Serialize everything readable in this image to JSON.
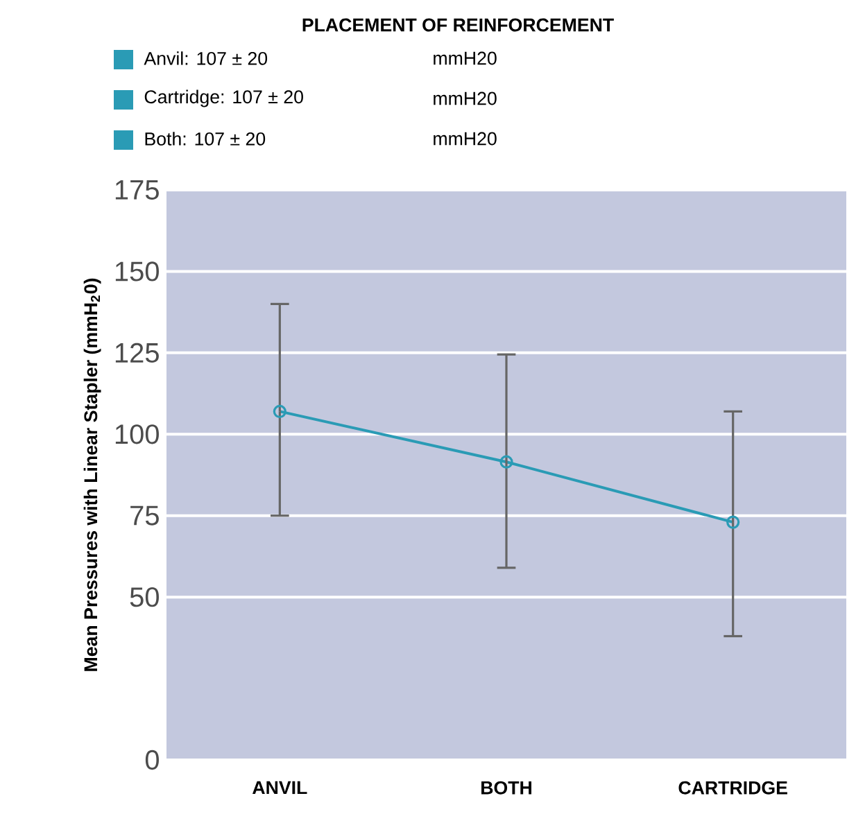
{
  "chart_data": {
    "type": "line",
    "title": "PLACEMENT OF REINFORCEMENT",
    "ylabel": "Mean Pressures with Linear Stapler (mmH$_{2}$0)",
    "categories": [
      "ANVIL",
      "BOTH",
      "CARTRIDGE"
    ],
    "series": [
      {
        "color": "#2a9bb5",
        "values": [
          107,
          91.5,
          73
        ],
        "errors": [
          [
            75,
            140
          ],
          [
            59,
            124.5
          ],
          [
            38,
            107
          ]
        ]
      }
    ],
    "ylim": [
      0,
      175
    ],
    "yticks": [
      0,
      50,
      75,
      100,
      125,
      150,
      175
    ],
    "grid": "y",
    "marker": "circle",
    "line_style": "solid",
    "annotations": [
      "Anvil: 107 ± 20",
      "mmH20",
      "Cartridge: 107 ± 20",
      "mmH20",
      "Both: 107 ± 20",
      "mmH20"
    ]
  }
}
